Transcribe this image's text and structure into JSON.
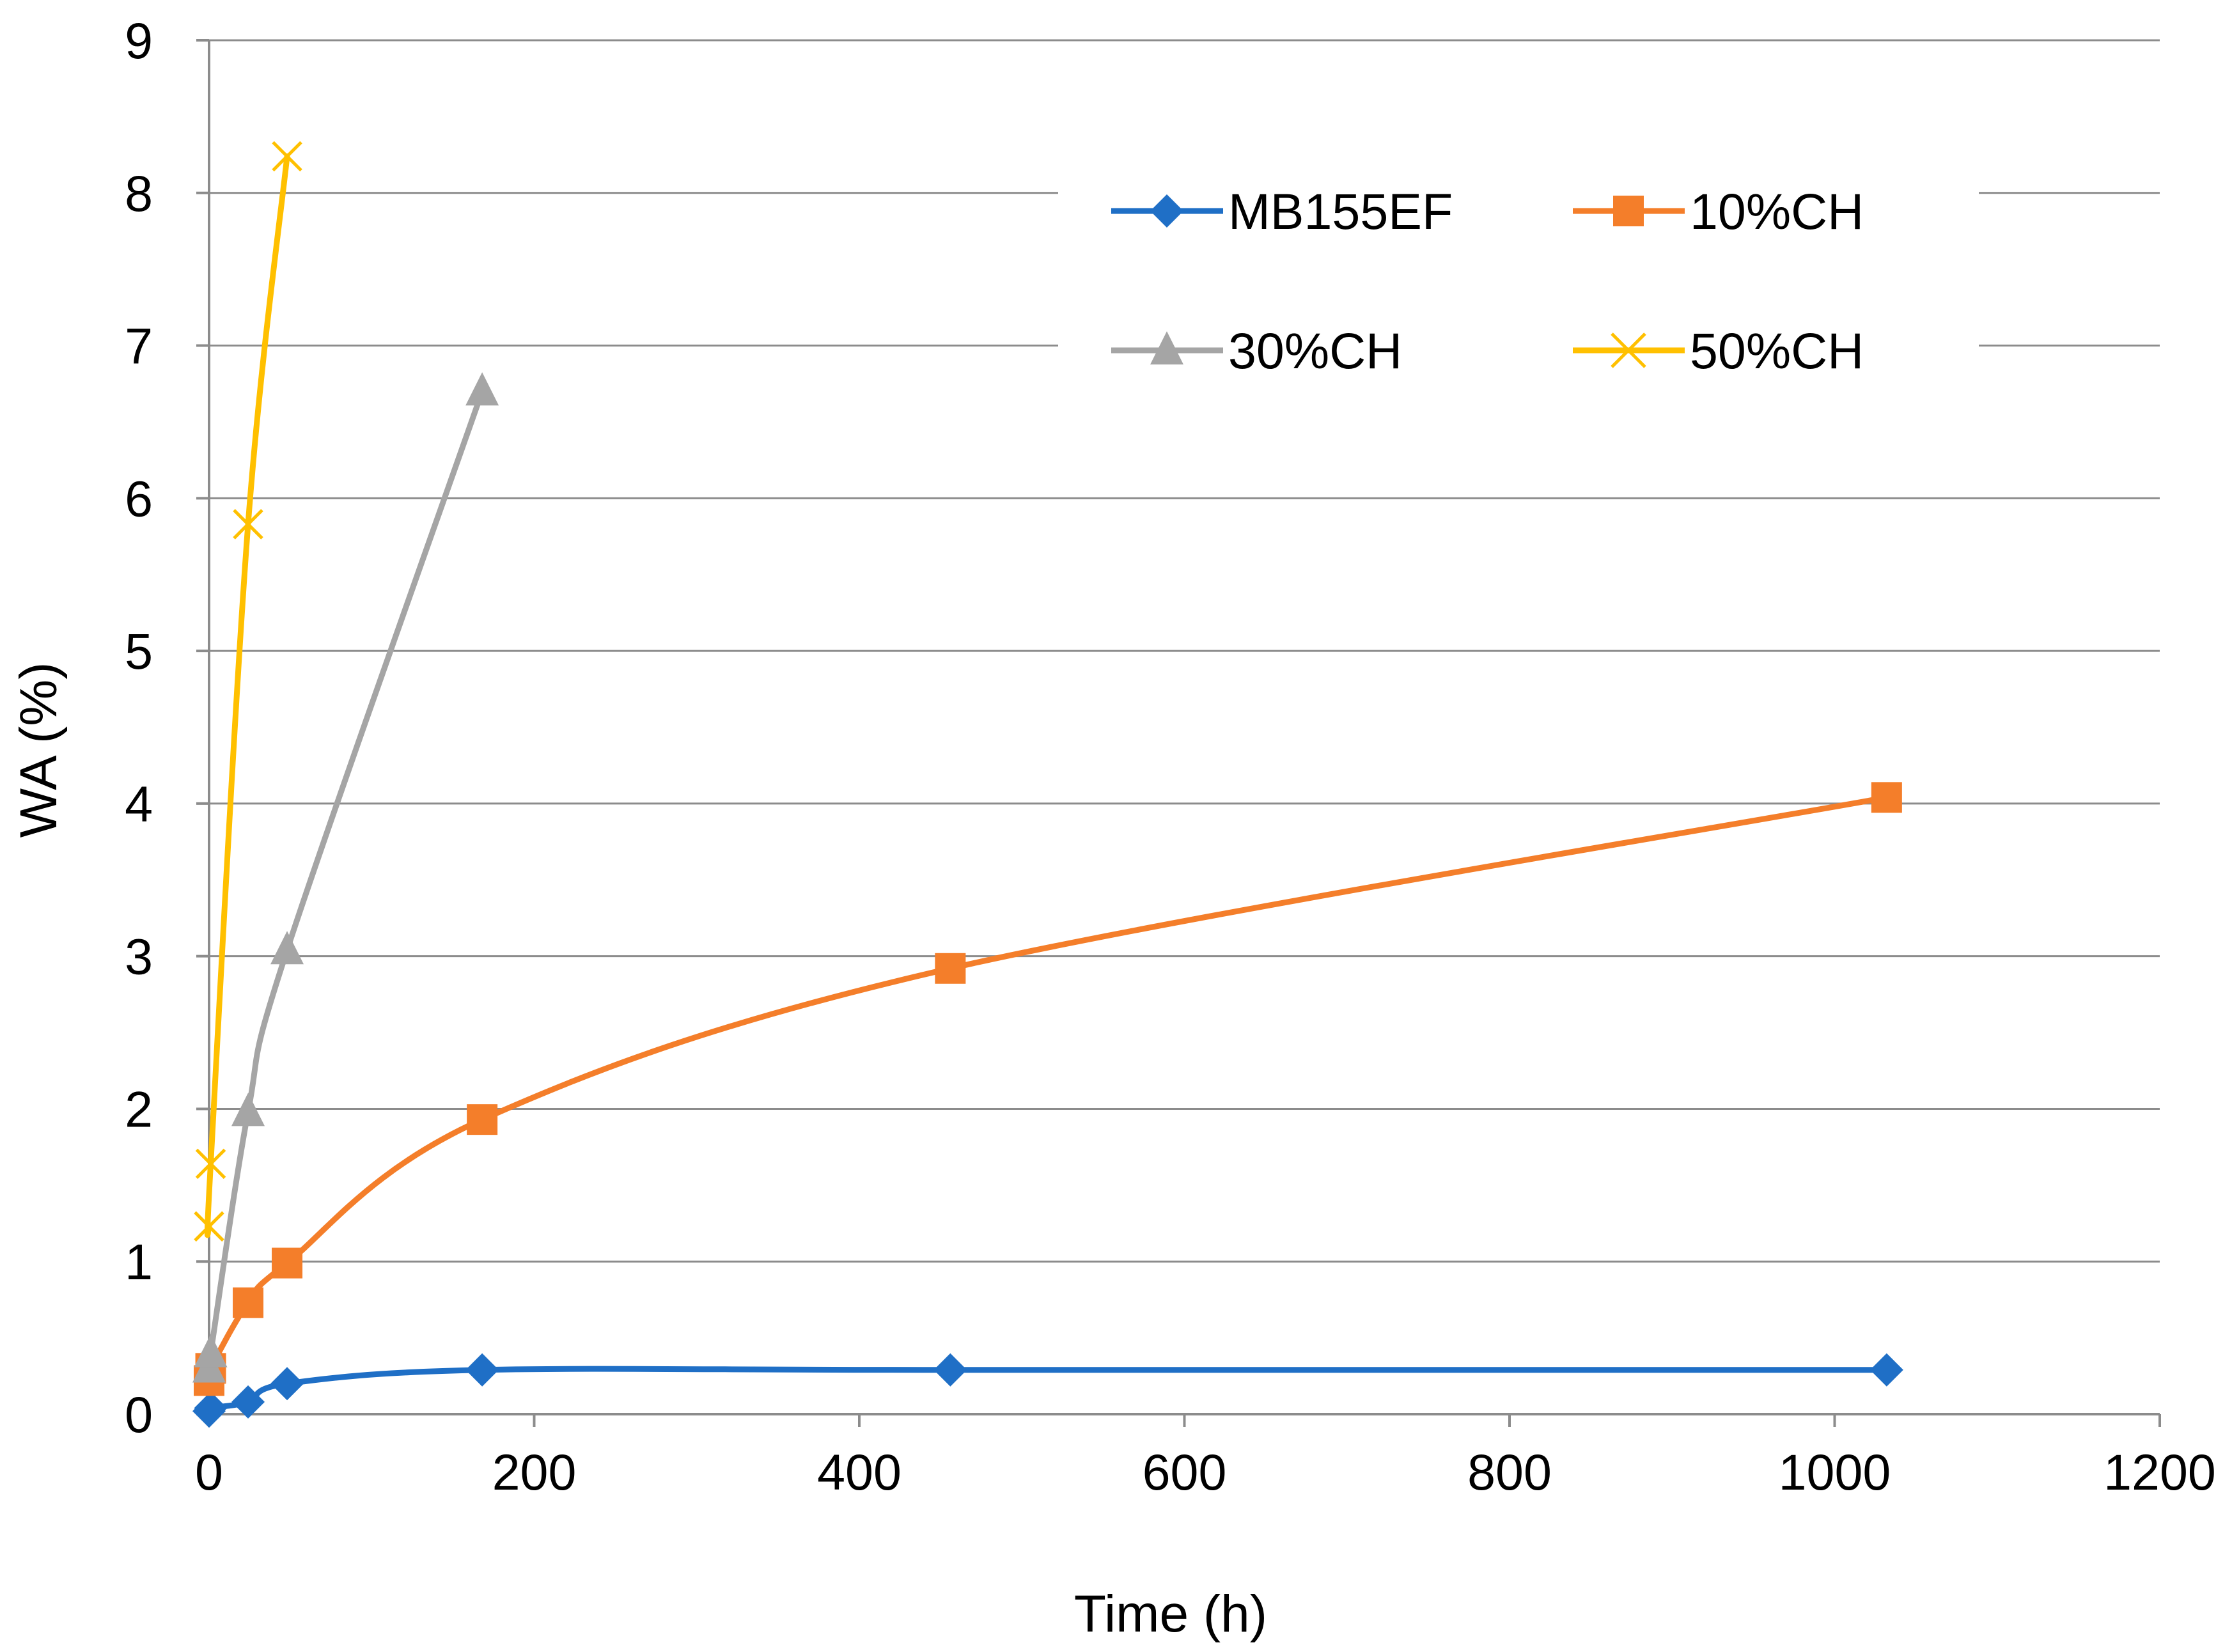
{
  "chart_data": {
    "type": "line",
    "title": "",
    "xlabel": "Time (h)",
    "ylabel": "WA (%)",
    "xlim": [
      0,
      1200
    ],
    "ylim": [
      0,
      9
    ],
    "xticks": [
      0,
      200,
      400,
      600,
      800,
      1000,
      1200
    ],
    "yticks": [
      0,
      1,
      2,
      3,
      4,
      5,
      6,
      7,
      8,
      9
    ],
    "xtick_labels": [
      "0",
      "200",
      "400",
      "600",
      "800",
      "1000",
      "1200"
    ],
    "ytick_labels": [
      "0",
      "1",
      "2",
      "3",
      "4",
      "5",
      "6",
      "7",
      "8",
      "9"
    ],
    "grid": "horizontal",
    "legend_position": "top-right",
    "series": [
      {
        "name": "MB155EF",
        "color": "#1f6fc6",
        "marker": "diamond",
        "x": [
          0,
          1,
          24,
          48,
          168,
          456,
          1032
        ],
        "y": [
          0.02,
          0.04,
          0.08,
          0.2,
          0.29,
          0.29,
          0.29
        ]
      },
      {
        "name": "10%CH",
        "color": "#f47e2a",
        "marker": "square",
        "x": [
          0,
          1,
          24,
          48,
          168,
          456,
          1032
        ],
        "y": [
          0.22,
          0.3,
          0.73,
          0.99,
          1.93,
          2.92,
          4.04
        ]
      },
      {
        "name": "30%CH",
        "color": "#a5a5a5",
        "marker": "triangle",
        "x": [
          0,
          1,
          24,
          48,
          168
        ],
        "y": [
          0.3,
          0.4,
          1.98,
          3.04,
          6.7
        ]
      },
      {
        "name": "50%CH",
        "color": "#ffc000",
        "marker": "cross",
        "x": [
          0,
          1,
          24,
          48
        ],
        "y": [
          1.23,
          1.64,
          5.83,
          8.24
        ]
      }
    ]
  }
}
